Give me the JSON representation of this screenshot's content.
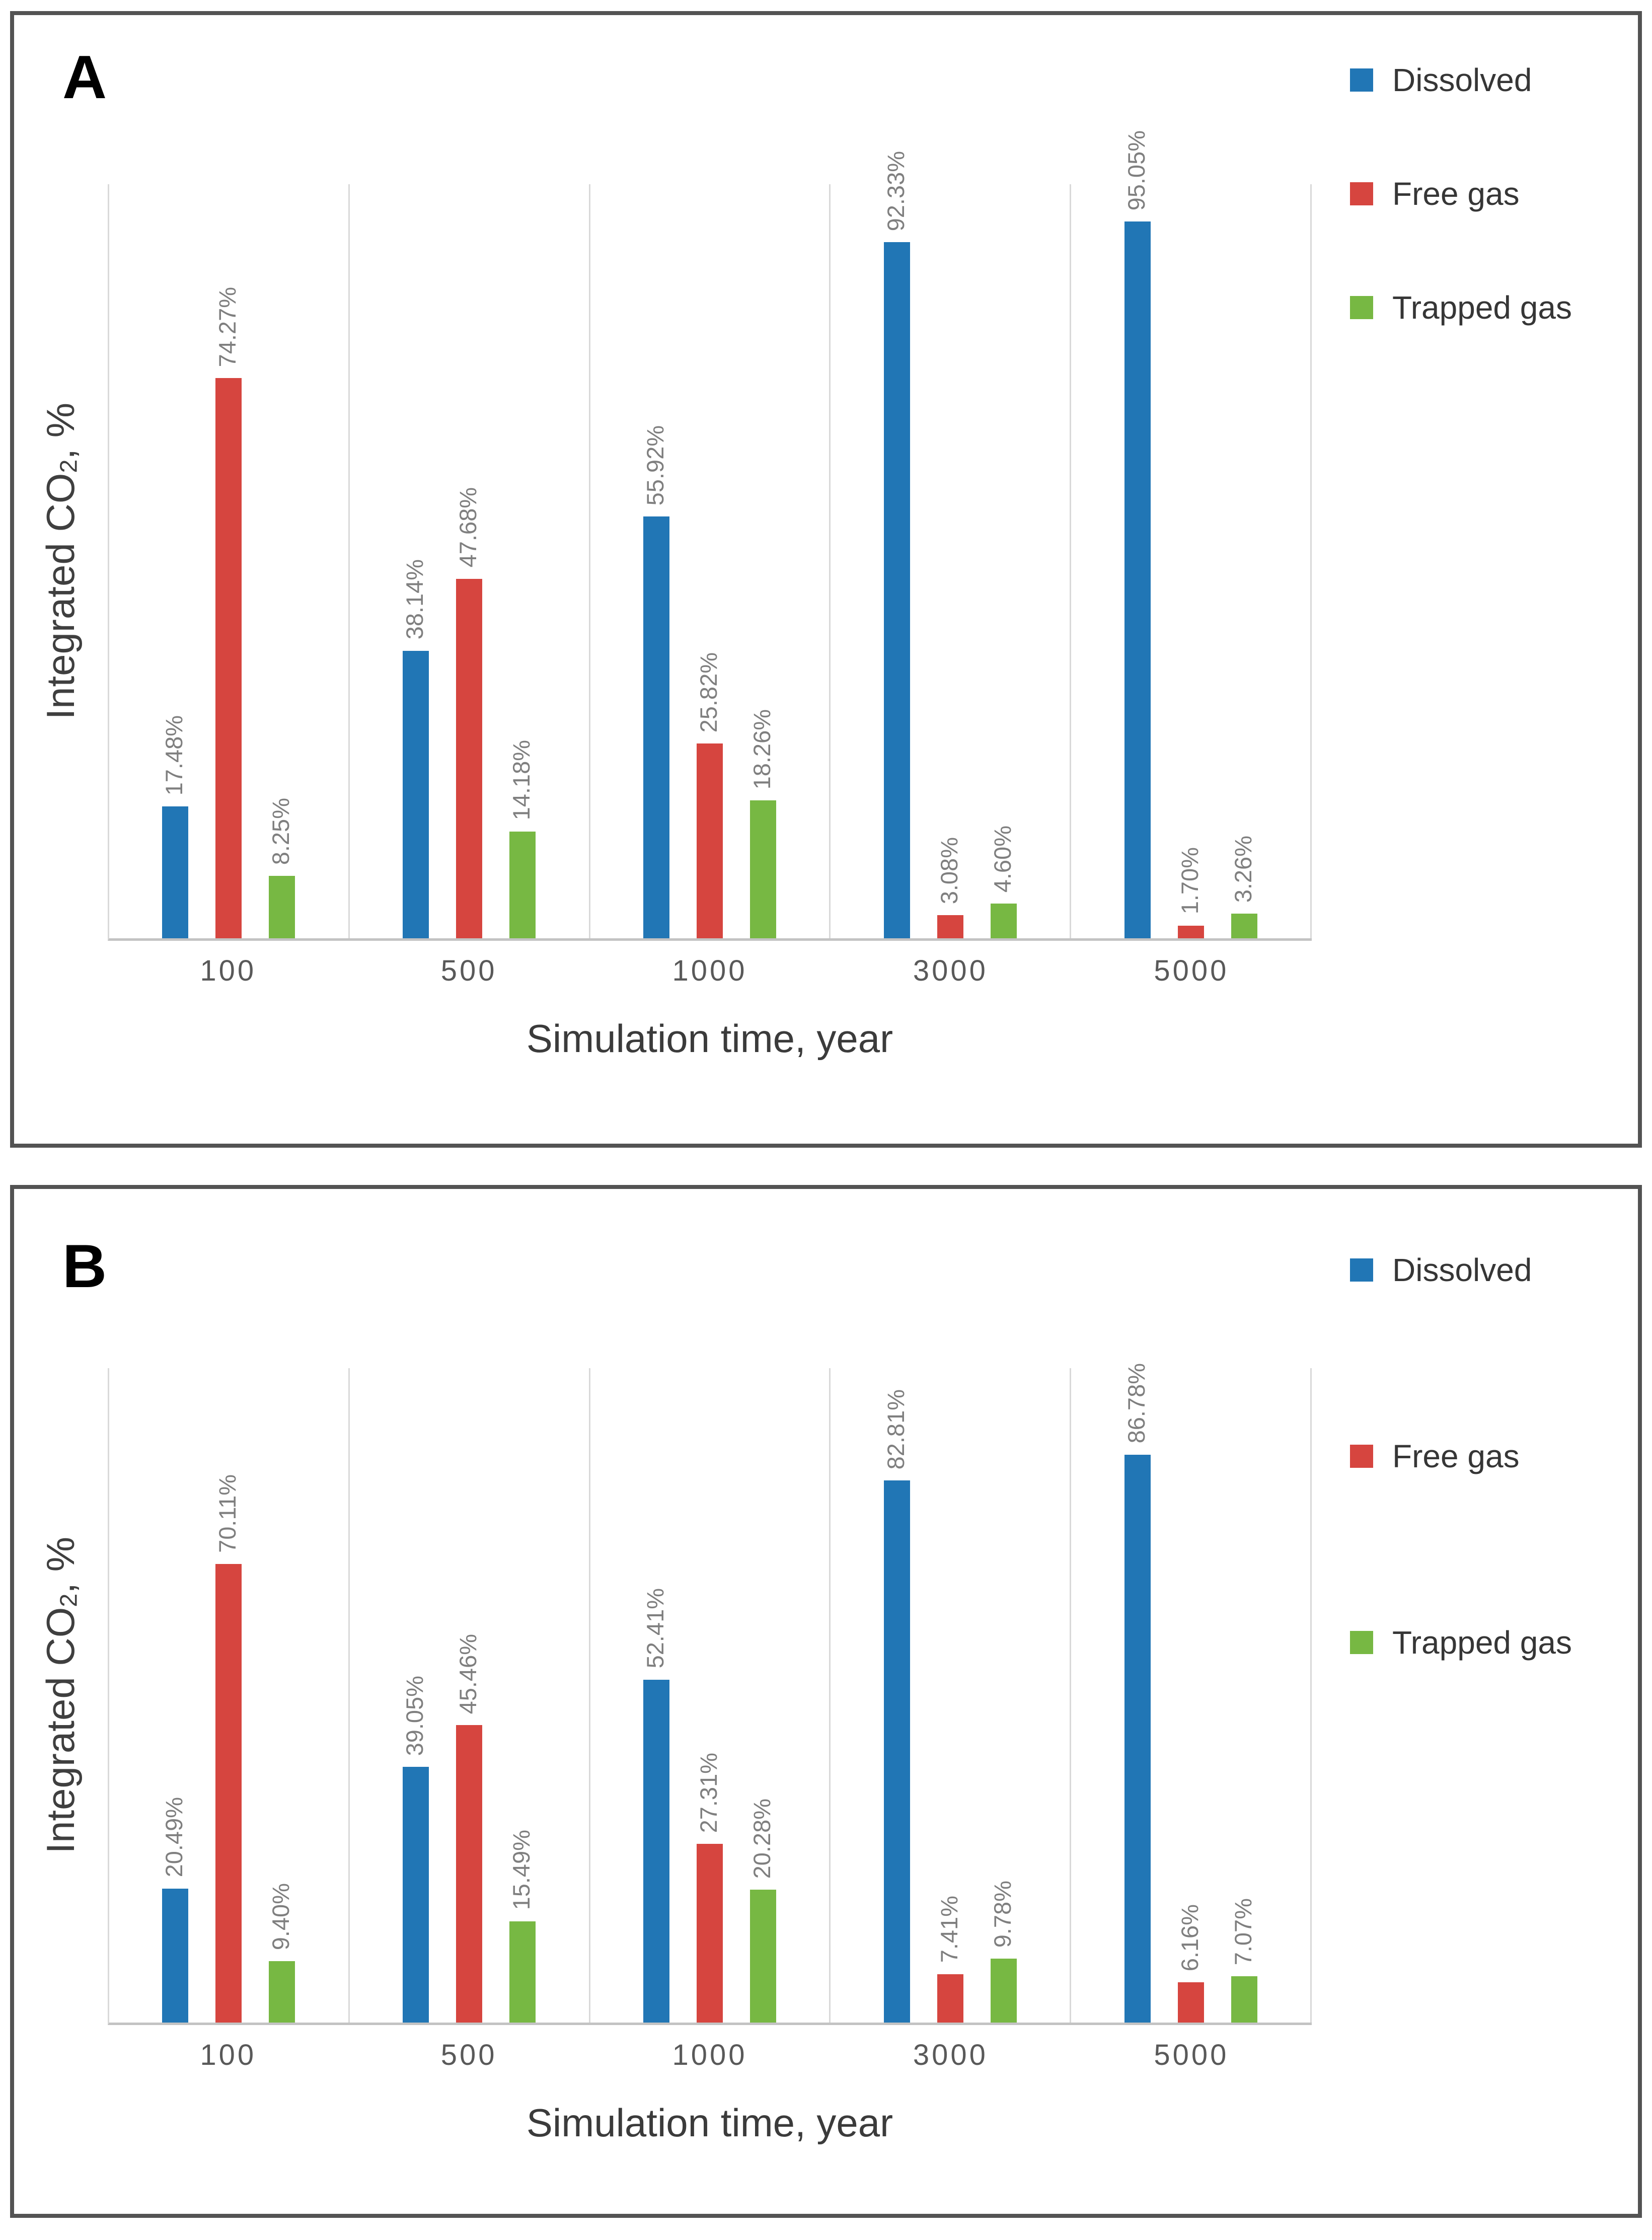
{
  "figure": {
    "panels": [
      {
        "panel_label": "A",
        "y_axis_title": {
          "prefix": "Integrated CO",
          "subscript": "2",
          "suffix": ", %"
        },
        "x_axis_title": "Simulation time, year",
        "legend_items": [
          {
            "label": "Dissolved",
            "color": "#2176B5"
          },
          {
            "label": "Free gas",
            "color": "#D6453F"
          },
          {
            "label": "Trapped gas",
            "color": "#77B843"
          }
        ]
      },
      {
        "panel_label": "B",
        "y_axis_title": {
          "prefix": "Integrated CO",
          "subscript": "2",
          "suffix": ", %"
        },
        "x_axis_title": "Simulation time, year",
        "legend_items": [
          {
            "label": "Dissolved",
            "color": "#2176B5"
          },
          {
            "label": "Free gas",
            "color": "#D6453F"
          },
          {
            "label": "Trapped gas",
            "color": "#77B843"
          }
        ]
      }
    ]
  },
  "chart_data": [
    {
      "type": "bar",
      "panel": "A",
      "title": "",
      "categories": [
        "100",
        "500",
        "1000",
        "3000",
        "5000"
      ],
      "series": [
        {
          "name": "Dissolved",
          "color": "#2176B5",
          "values": [
            17.48,
            38.14,
            55.92,
            92.33,
            95.05
          ],
          "labels": [
            "17.48%",
            "38.14%",
            "55.92%",
            "92.33%",
            "95.05%"
          ]
        },
        {
          "name": "Free gas",
          "color": "#D6453F",
          "values": [
            74.27,
            47.68,
            25.82,
            3.08,
            1.7
          ],
          "labels": [
            "74.27%",
            "47.68%",
            "25.82%",
            "3.08%",
            "1.70%"
          ]
        },
        {
          "name": "Trapped gas",
          "color": "#77B843",
          "values": [
            8.25,
            14.18,
            18.26,
            4.6,
            3.26
          ],
          "labels": [
            "8.25%",
            "14.18%",
            "18.26%",
            "4.60%",
            "3.26%"
          ]
        }
      ],
      "xlabel": "Simulation time, year",
      "ylabel": "Integrated CO2, %",
      "ylim": [
        0,
        100
      ],
      "grid": "vertical category-boundary gridlines only",
      "legend_position": "right",
      "data_labels": "rotated 90deg, gray, two-decimal percent above each bar"
    },
    {
      "type": "bar",
      "panel": "B",
      "title": "",
      "categories": [
        "100",
        "500",
        "1000",
        "3000",
        "5000"
      ],
      "series": [
        {
          "name": "Dissolved",
          "color": "#2176B5",
          "values": [
            20.49,
            39.05,
            52.41,
            82.81,
            86.78
          ],
          "labels": [
            "20.49%",
            "39.05%",
            "52.41%",
            "82.81%",
            "86.78%"
          ]
        },
        {
          "name": "Free gas",
          "color": "#D6453F",
          "values": [
            70.11,
            45.46,
            27.31,
            7.41,
            6.16
          ],
          "labels": [
            "70.11%",
            "45.46%",
            "27.31%",
            "7.41%",
            "6.16%"
          ]
        },
        {
          "name": "Trapped gas",
          "color": "#77B843",
          "values": [
            9.4,
            15.49,
            20.28,
            9.78,
            7.07
          ],
          "labels": [
            "9.40%",
            "15.49%",
            "20.28%",
            "9.78%",
            "7.07%"
          ]
        }
      ],
      "xlabel": "Simulation time, year",
      "ylabel": "Integrated CO2, %",
      "ylim": [
        0,
        100
      ],
      "grid": "vertical category-boundary gridlines only",
      "legend_position": "right",
      "data_labels": "rotated 90deg, gray, two-decimal percent above each bar"
    }
  ]
}
